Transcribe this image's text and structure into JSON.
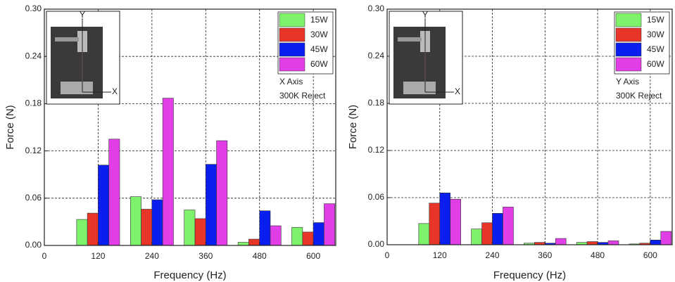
{
  "chart_data": [
    {
      "type": "bar",
      "x_label": "Frequency (Hz)",
      "y_label": "Force (N)",
      "x": [
        120,
        240,
        360,
        480,
        600
      ],
      "xlim": [
        0,
        650
      ],
      "xticks": [
        0,
        120,
        240,
        360,
        480,
        600
      ],
      "ylim": [
        0,
        0.3
      ],
      "yticks": [
        {
          "value": 0,
          "label": "0.00"
        },
        0.06,
        0.12,
        0.18,
        0.24,
        {
          "value": 0.3,
          "label": "0.30"
        }
      ],
      "grid": true,
      "legend": "upper right",
      "annotations": [
        "X Axis",
        "300K Reject"
      ],
      "inset": {
        "y_label": "Y",
        "x_label": "X"
      },
      "series": [
        {
          "name": "15W",
          "color": "#7ef26b",
          "values": [
            0.033,
            0.062,
            0.045,
            0.004,
            0.023
          ]
        },
        {
          "name": "30W",
          "color": "#e8352a",
          "values": [
            0.041,
            0.046,
            0.034,
            0.008,
            0.017
          ]
        },
        {
          "name": "45W",
          "color": "#0a1ef0",
          "values": [
            0.102,
            0.058,
            0.103,
            0.044,
            0.029
          ]
        },
        {
          "name": "60W",
          "color": "#e13ee8",
          "values": [
            0.135,
            0.187,
            0.133,
            0.025,
            0.053
          ]
        }
      ]
    },
    {
      "type": "bar",
      "x_label": "Frequency (Hz)",
      "y_label": "Force (N)",
      "x": [
        120,
        240,
        360,
        480,
        600
      ],
      "xlim": [
        0,
        650
      ],
      "xticks": [
        0,
        120,
        240,
        360,
        480,
        600
      ],
      "ylim": [
        0,
        0.3
      ],
      "yticks": [
        {
          "value": 0,
          "label": "0.00"
        },
        0.06,
        0.12,
        0.18,
        0.24,
        {
          "value": 0.3,
          "label": "0.30"
        }
      ],
      "grid": true,
      "legend": "upper right",
      "annotations": [
        "Y Axis",
        "300K Reject"
      ],
      "inset": {
        "y_label": "Y",
        "x_label": "X"
      },
      "series": [
        {
          "name": "15W",
          "color": "#7ef26b",
          "values": [
            0.027,
            0.02,
            0.002,
            0.003,
            0.001
          ]
        },
        {
          "name": "30W",
          "color": "#e8352a",
          "values": [
            0.053,
            0.028,
            0.003,
            0.004,
            0.002
          ]
        },
        {
          "name": "45W",
          "color": "#0a1ef0",
          "values": [
            0.066,
            0.04,
            0.002,
            0.003,
            0.006
          ]
        },
        {
          "name": "60W",
          "color": "#e13ee8",
          "values": [
            0.058,
            0.048,
            0.008,
            0.005,
            0.017
          ]
        }
      ]
    }
  ]
}
